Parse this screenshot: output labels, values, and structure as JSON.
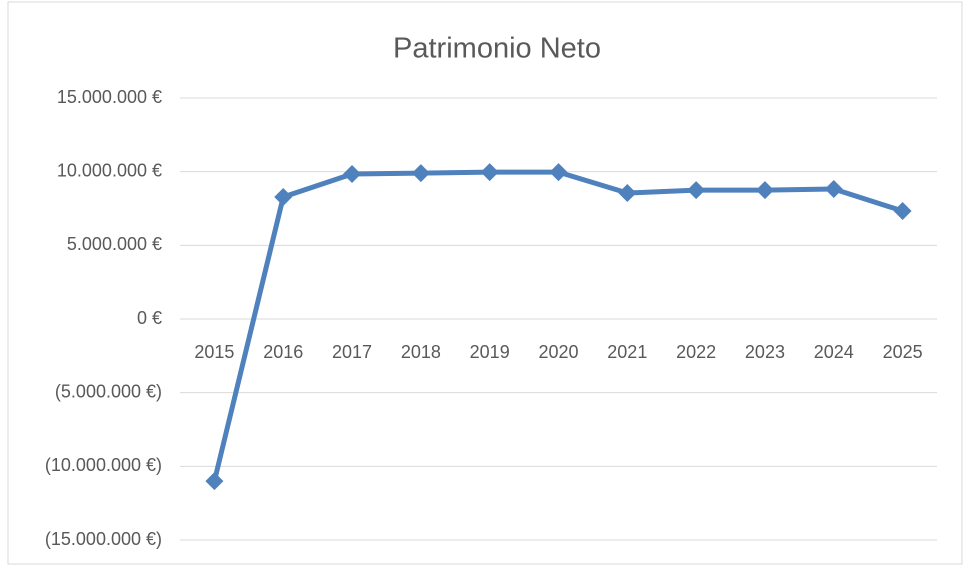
{
  "chart_data": {
    "type": "line",
    "title": "Patrimonio Neto",
    "categories": [
      "2015",
      "2016",
      "2017",
      "2018",
      "2019",
      "2020",
      "2021",
      "2022",
      "2023",
      "2024",
      "2025"
    ],
    "series": [
      {
        "name": "Patrimonio Neto",
        "color": "#4f81bd",
        "values": [
          -11000000,
          8280000,
          9840000,
          9900000,
          9970000,
          9970000,
          8550000,
          8750000,
          8750000,
          8820000,
          7330000
        ]
      }
    ],
    "ylim": [
      -15000000,
      15000000
    ],
    "yticks": [
      {
        "value": -15000000,
        "label": "(15.000.000 €)"
      },
      {
        "value": -10000000,
        "label": "(10.000.000 €)"
      },
      {
        "value": -5000000,
        "label": "(5.000.000 €)"
      },
      {
        "value": 0,
        "label": "0 €"
      },
      {
        "value": 5000000,
        "label": "5.000.000 €"
      },
      {
        "value": 10000000,
        "label": "10.000.000 €"
      },
      {
        "value": 15000000,
        "label": "15.000.000 €"
      }
    ],
    "grid": true
  }
}
